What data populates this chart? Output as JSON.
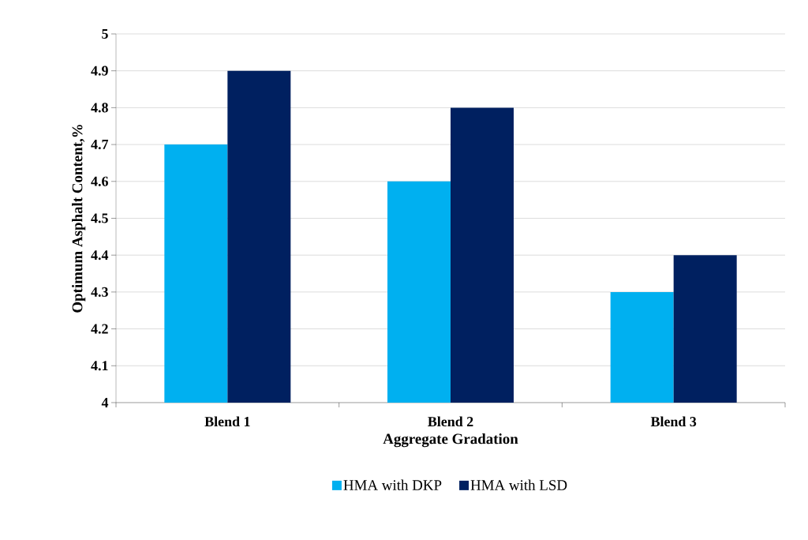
{
  "chart_data": {
    "type": "bar",
    "xlabel": "Aggregate Gradation",
    "ylabel": "Optimum  Asphalt  Content,%",
    "categories": [
      "Blend 1",
      "Blend 2",
      "Blend 3"
    ],
    "series": [
      {
        "name": "HMA with DKP",
        "color": "#00b0f0",
        "values": [
          4.7,
          4.6,
          4.3
        ]
      },
      {
        "name": "HMA with LSD",
        "color": "#002060",
        "values": [
          4.9,
          4.8,
          4.4
        ]
      }
    ],
    "ylim": [
      4,
      5
    ],
    "yticks": [
      4,
      4.1,
      4.2,
      4.3,
      4.4,
      4.5,
      4.6,
      4.7,
      4.8,
      4.9,
      5
    ],
    "grid": "y",
    "legend": "bottom"
  }
}
